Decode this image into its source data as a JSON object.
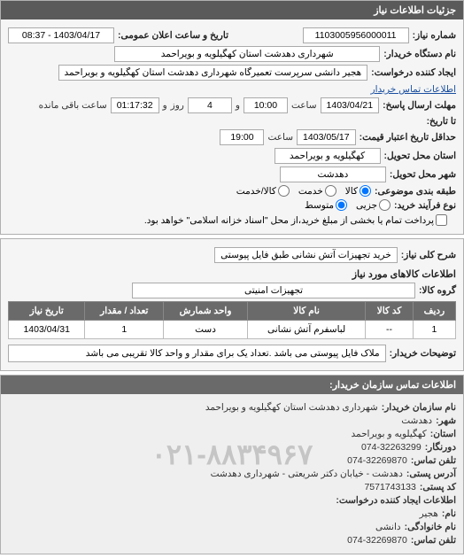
{
  "panel1": {
    "title": "جزئیات اطلاعات نیاز",
    "need_no_label": "شماره نیاز:",
    "need_no": "1103005956000011",
    "pubdatetime_label": "تاریخ و ساعت اعلان عمومی:",
    "pubdatetime": "1403/04/17 - 08:37",
    "buyer_org_label": "نام دستگاه خریدار:",
    "buyer_org": "شهرداری دهدشت استان کهگیلویه و بویراحمد",
    "creator_label": "ایجاد کننده درخواست:",
    "creator": "هجیر دانشی سرپرست تعمیرگاه شهرداری دهدشت استان کهگیلویه و بویراحمد",
    "buyer_contact_link": "اطلاعات تماس خریدار",
    "deadline_label": "مهلت ارسال پاسخ:",
    "until_label": "تا تاریخ:",
    "deadline_date": "1403/04/21",
    "time_word": "ساعت",
    "deadline_time": "10:00",
    "and_word": "و",
    "days_remaining": "4",
    "day_word": "روز",
    "remaining_time": "01:17:32",
    "remaining_label": "ساعت باقی مانده",
    "validity_label": "حداقل تاریخ اعتبار قیمت:",
    "validity_date": "1403/05/17",
    "validity_time": "19:00",
    "province_label": "استان محل تحویل:",
    "province": "کهگیلویه و بویراحمد",
    "city_label": "شهر محل تحویل:",
    "city": "دهدشت",
    "class_label": "طبقه بندی موضوعی:",
    "radio_kala": "کالا",
    "radio_khadmat": "خدمت",
    "radio_kalakhadmat": "کالا/خدمت",
    "process_label": "نوع فرآیند خرید:",
    "radio_jozi": "جزیی",
    "radio_motevasset": "متوسط",
    "payment_note": "پرداخت تمام یا بخشی از مبلغ خرید،از محل \"اسناد خزانه اسلامی\" خواهد بود."
  },
  "panel2": {
    "need_desc_label": "شرح کلی نیاز:",
    "need_desc": "خرید تجهیزات آتش نشانی طبق فایل پیوستی",
    "items_title": "اطلاعات کالاهای مورد نیاز",
    "group_label": "گروه کالا:",
    "group": "تجهیزات امنیتی",
    "table": {
      "headers": [
        "ردیف",
        "کد کالا",
        "نام کالا",
        "واحد شمارش",
        "تعداد / مقدار",
        "تاریخ نیاز"
      ],
      "row": [
        "1",
        "--",
        "لباسفرم آتش نشانی",
        "دست",
        "1",
        "1403/04/31"
      ]
    },
    "buyer_notes_label": "توضیحات خریدار:",
    "buyer_notes": "ملاک فایل پیوستی می باشد .تعداد یک برای مقدار و واحد کالا تقریبی می باشد"
  },
  "panel3": {
    "title": "اطلاعات تماس سازمان خریدار:",
    "watermark": "۰۲۱-۸۸۳۴۹۶۷",
    "lines": [
      {
        "label": "نام سازمان خریدار:",
        "value": "شهرداری دهدشت استان کهگیلویه و بویراحمد"
      },
      {
        "label": "شهر:",
        "value": "دهدشت"
      },
      {
        "label": "استان:",
        "value": "کهگیلویه و بویراحمد"
      },
      {
        "label": "دورنگار:",
        "value": "074-32263299"
      },
      {
        "label": "تلفن تماس:",
        "value": "074-32269870"
      },
      {
        "label": "آدرس پستی:",
        "value": "دهدشت - خیابان دکتر شریعتی - شهرداری دهدشت"
      },
      {
        "label": "کد پستی:",
        "value": "7571743133"
      },
      {
        "label": "اطلاعات ایجاد کننده درخواست:",
        "value": ""
      },
      {
        "label": "نام:",
        "value": "هجیر"
      },
      {
        "label": "نام خانوادگی:",
        "value": "دانشی"
      },
      {
        "label": "تلفن تماس:",
        "value": "074-32269870"
      }
    ]
  }
}
